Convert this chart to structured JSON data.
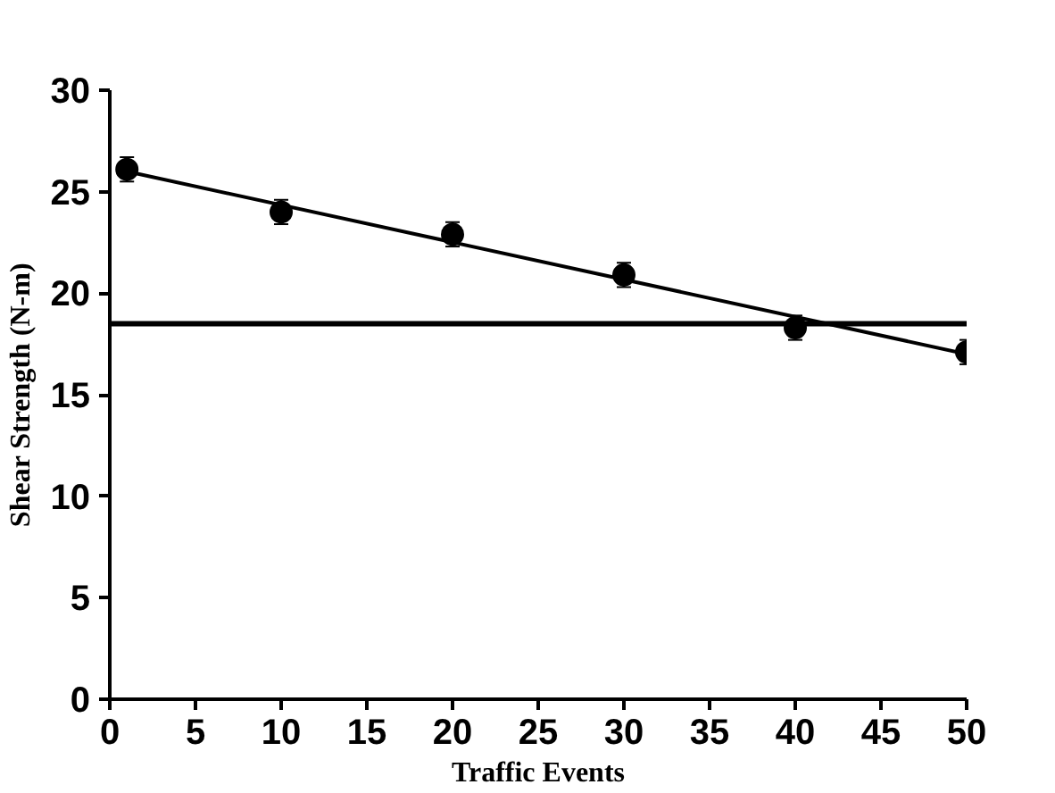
{
  "chart_data": {
    "type": "scatter",
    "xlabel": "Traffic Events",
    "ylabel": "Shear Strength (N-m)",
    "xlim": [
      0,
      50
    ],
    "ylim": [
      0,
      30
    ],
    "xticks": [
      0,
      5,
      10,
      15,
      20,
      25,
      30,
      35,
      40,
      45,
      50
    ],
    "yticks": [
      0,
      5,
      10,
      15,
      20,
      25,
      30
    ],
    "grid": false,
    "series": [
      {
        "marker": "circle",
        "color": "#000000",
        "x": [
          1,
          10,
          20,
          30,
          40,
          50
        ],
        "values": [
          26.1,
          24.0,
          22.9,
          20.9,
          18.3,
          17.1
        ],
        "errors": [
          0.6,
          0.6,
          0.6,
          0.6,
          0.6,
          0.6
        ]
      },
      {
        "type": "line",
        "color": "#000000",
        "x": [
          1,
          50
        ],
        "values": [
          26.0,
          17.0
        ],
        "marker": "none",
        "line_style": "solid"
      }
    ],
    "ref_lines": [
      {
        "axis": "y",
        "value": 18.5,
        "color": "#000000",
        "line_style": "solid"
      }
    ]
  }
}
